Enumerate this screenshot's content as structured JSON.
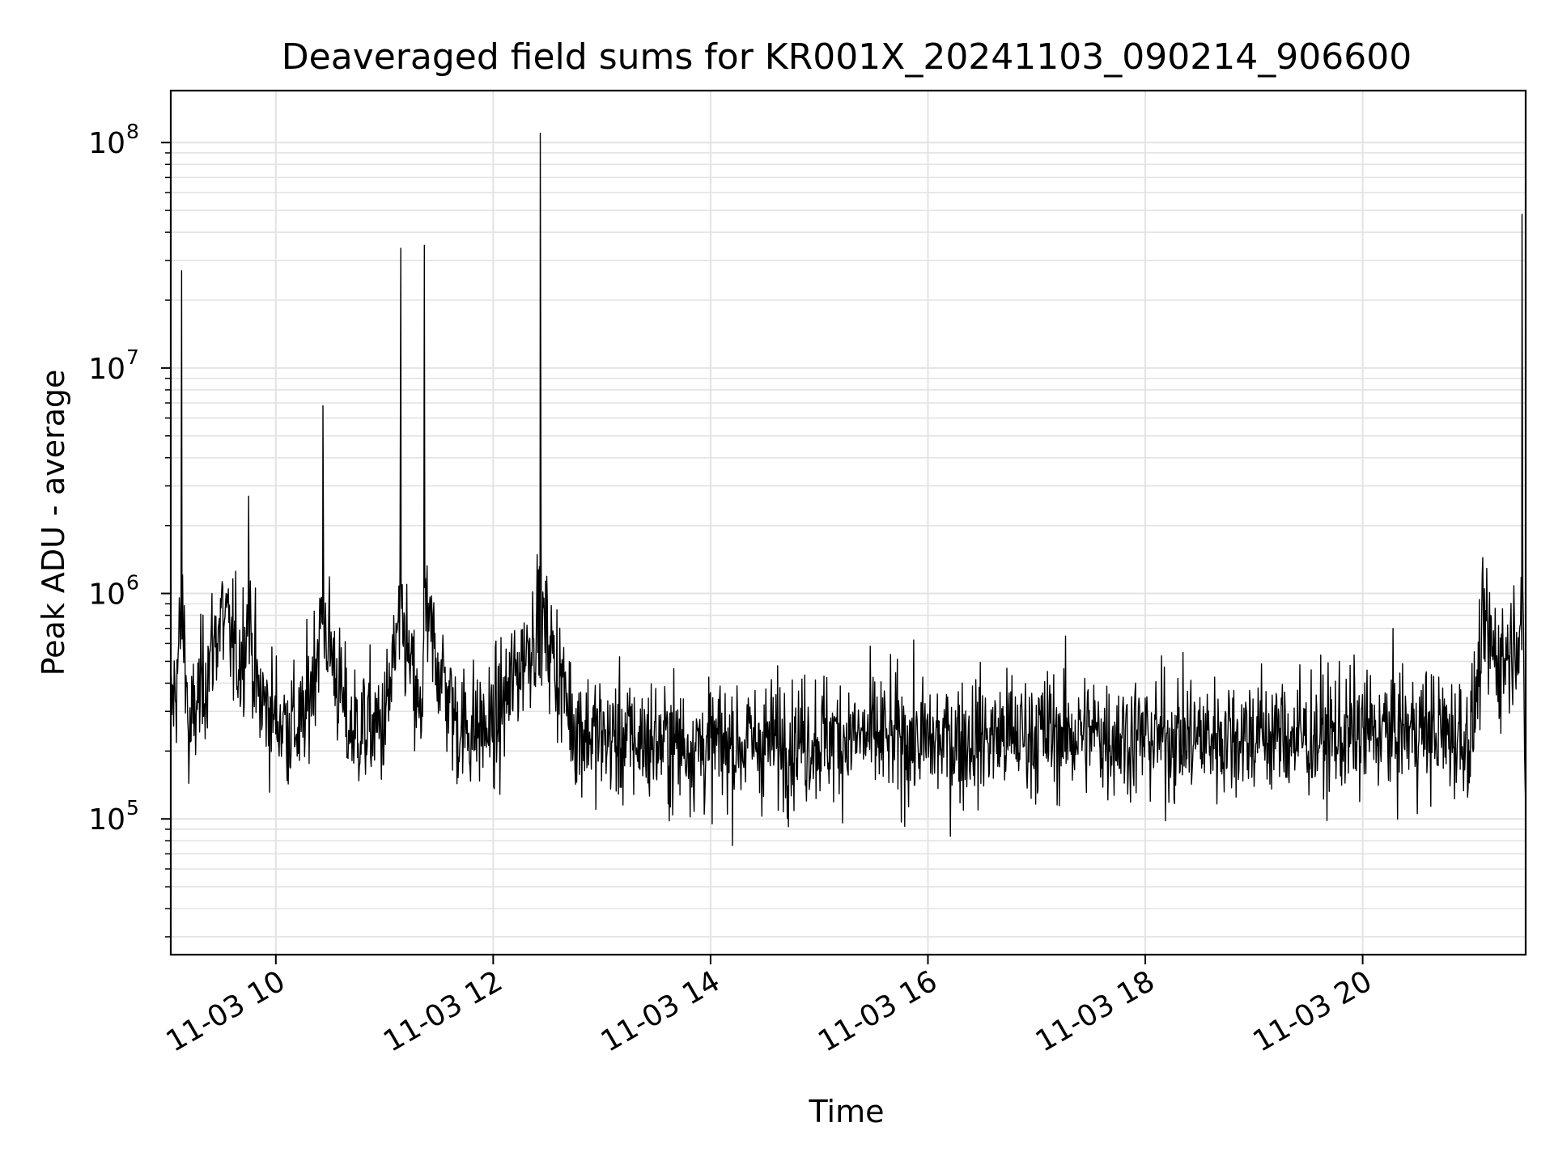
{
  "chart_data": {
    "type": "line",
    "title": "Deaveraged field sums for KR001X_20241103_090214_906600",
    "xlabel": "Time",
    "ylabel": "Peak ADU - average",
    "yscale": "log",
    "ylim": [
      25000,
      170000000
    ],
    "xlim": [
      "2024-11-03 09:02",
      "2024-11-03 21:30"
    ],
    "grid": true,
    "line_color": "#000000",
    "x_ticks": [
      {
        "label": "11-03 10",
        "time": "2024-11-03 10:00"
      },
      {
        "label": "11-03 12",
        "time": "2024-11-03 12:00"
      },
      {
        "label": "11-03 14",
        "time": "2024-11-03 14:00"
      },
      {
        "label": "11-03 16",
        "time": "2024-11-03 16:00"
      },
      {
        "label": "11-03 18",
        "time": "2024-11-03 18:00"
      },
      {
        "label": "11-03 20",
        "time": "2024-11-03 20:00"
      }
    ],
    "y_ticks": [
      {
        "base": "10",
        "exp": "5",
        "value": 100000
      },
      {
        "base": "10",
        "exp": "6",
        "value": 1000000
      },
      {
        "base": "10",
        "exp": "7",
        "value": 10000000
      },
      {
        "base": "10",
        "exp": "8",
        "value": 100000000
      }
    ],
    "series": [
      {
        "name": "",
        "x": [
          "2024-11-03 09:02",
          "2024-11-03 09:05",
          "2024-11-03 09:08",
          "2024-11-03 09:10",
          "2024-11-03 09:12",
          "2024-11-03 09:15",
          "2024-11-03 09:20",
          "2024-11-03 09:30",
          "2024-11-03 09:40",
          "2024-11-03 09:45",
          "2024-11-03 09:50",
          "2024-11-03 10:00",
          "2024-11-03 10:15",
          "2024-11-03 10:26",
          "2024-11-03 10:40",
          "2024-11-03 11:00",
          "2024-11-03 11:09",
          "2024-11-03 11:20",
          "2024-11-03 11:22",
          "2024-11-03 11:40",
          "2024-11-03 12:00",
          "2024-11-03 12:26",
          "2024-11-03 12:45",
          "2024-11-03 13:00",
          "2024-11-03 13:30",
          "2024-11-03 14:00",
          "2024-11-03 14:30",
          "2024-11-03 15:00",
          "2024-11-03 15:30",
          "2024-11-03 16:00",
          "2024-11-03 16:30",
          "2024-11-03 17:00",
          "2024-11-03 17:30",
          "2024-11-03 18:00",
          "2024-11-03 18:30",
          "2024-11-03 19:00",
          "2024-11-03 19:30",
          "2024-11-03 20:00",
          "2024-11-03 20:30",
          "2024-11-03 21:00",
          "2024-11-03 21:07",
          "2024-11-03 21:15",
          "2024-11-03 21:20",
          "2024-11-03 21:28",
          "2024-11-03 21:30"
        ],
        "y": [
          300000,
          400000,
          27000000,
          600000,
          200000,
          300000,
          400000,
          1000000,
          500000,
          2700000,
          350000,
          280000,
          250000,
          6800000,
          250000,
          260000,
          34000000,
          250000,
          35000000,
          260000,
          250000,
          110000000,
          260000,
          230000,
          220000,
          210000,
          220000,
          230000,
          230000,
          220000,
          230000,
          240000,
          240000,
          230000,
          230000,
          240000,
          230000,
          240000,
          250000,
          230000,
          700000,
          500000,
          550000,
          48000000,
          100000
        ]
      }
    ]
  }
}
